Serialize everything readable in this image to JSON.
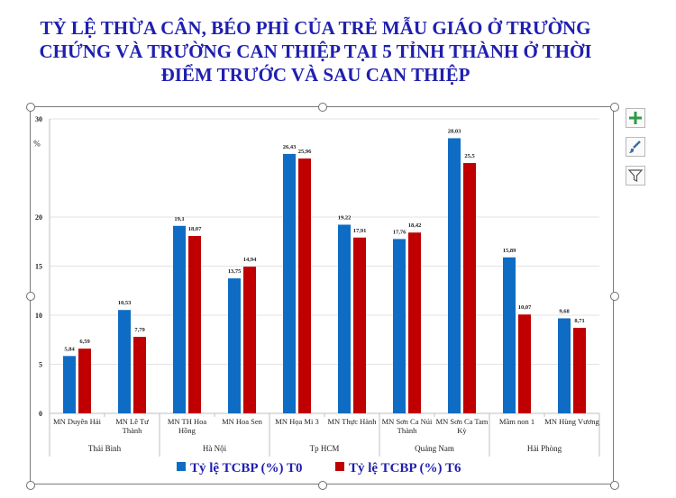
{
  "title": "TỶ LỆ THỪA CÂN, BÉO PHÌ CỦA TRẺ MẪU GIÁO Ở TRƯỜNG CHỨNG VÀ TRƯỜNG CAN THIỆP TẠI 5 TỈNH THÀNH Ở THỜI ĐIỂM TRƯỚC VÀ SAU CAN THIỆP",
  "colors": {
    "title": "#1f1fb0",
    "series_t0": "#0f6cc4",
    "series_t6": "#c00000"
  },
  "icons": [
    "add-element-icon",
    "brush-style-icon",
    "filter-icon"
  ],
  "chart_data": {
    "type": "bar",
    "title": "",
    "ylabel": "%",
    "ylim": [
      0,
      30
    ],
    "yticks": [
      "0",
      "5",
      "10",
      "15",
      "20",
      "30"
    ],
    "grid": true,
    "legend_position": "bottom",
    "categories": [
      "MN Duyên Hải",
      "MN Lê Tư Thành",
      "MN TH Hoa Hồng",
      "MN Hoa Sen",
      "MN Họa Mi 3",
      "MN Thực Hành",
      "MN Sơn Ca Núi Thành",
      "MN Sơn Ca Tam Kỳ",
      "Mầm non 1",
      "MN Hùng Vương"
    ],
    "groups": [
      {
        "name": "Thái Bình",
        "count": 2
      },
      {
        "name": "Hà Nội",
        "count": 2
      },
      {
        "name": "Tp HCM",
        "count": 2
      },
      {
        "name": "Quảng Nam",
        "count": 2
      },
      {
        "name": "Hải Phòng",
        "count": 2
      }
    ],
    "series": [
      {
        "name": "Tỷ lệ TCBP (%) T0",
        "values": [
          5.84,
          10.53,
          19.1,
          13.75,
          26.43,
          19.22,
          17.76,
          28.03,
          15.89,
          9.68
        ],
        "labels": [
          "5,84",
          "10,53",
          "19,1",
          "13,75",
          "26,43",
          "19,22",
          "17,76",
          "28,03",
          "15,89",
          "9,68"
        ]
      },
      {
        "name": "Tỷ lệ TCBP (%) T6",
        "values": [
          6.59,
          7.79,
          18.07,
          14.94,
          25.96,
          17.91,
          18.42,
          25.5,
          10.07,
          8.71
        ],
        "labels": [
          "6,59",
          "7,79",
          "18,07",
          "14,94",
          "25,96",
          "17,91",
          "18,42",
          "25,5",
          "10,07",
          "8,71"
        ]
      }
    ]
  }
}
